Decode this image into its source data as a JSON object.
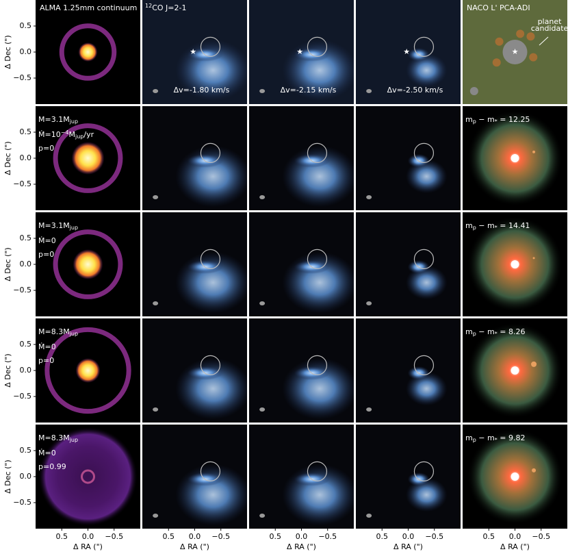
{
  "header": {
    "continuum": "ALMA 1.25mm continuum",
    "co_sup": "12",
    "co": "CO J=2-1",
    "naco": "NACO L' PCA-ADI"
  },
  "axes": {
    "xlabel": "Δ RA (\")",
    "ylabel": "Δ Dec (\")",
    "xlim": [
      1,
      -1
    ],
    "ylim": [
      -1,
      1
    ],
    "ticks": [
      {
        "value": 0.5,
        "label": "0.5"
      },
      {
        "value": 0,
        "label": "0.0"
      },
      {
        "value": -0.5,
        "label": "−0.5"
      }
    ]
  },
  "velocity_labels": [
    "Δv=-1.80 km/s",
    "Δv=-2.15 km/s",
    "Δv=-2.50 km/s"
  ],
  "planet_label": [
    "planet",
    "candidate"
  ],
  "models": [
    {
      "mass": [
        {
          "t": "M=3.1M"
        },
        {
          "sub": "jup"
        }
      ],
      "mdot": [
        {
          "t": "Ṁ=10"
        },
        {
          "sup": "−4"
        },
        {
          "t": "M"
        },
        {
          "sub": "jup"
        },
        {
          "t": "/yr"
        }
      ],
      "p": "p=0",
      "contrast": [
        {
          "t": "m"
        },
        {
          "sub": "p"
        },
        {
          "t": " − m"
        },
        {
          "sub": "*"
        },
        {
          "t": " = 12.25"
        }
      ]
    },
    {
      "mass": [
        {
          "t": "M=3.1M"
        },
        {
          "sub": "jup"
        }
      ],
      "mdot": [
        {
          "t": "Ṁ=0"
        }
      ],
      "p": "p=0",
      "contrast": [
        {
          "t": "m"
        },
        {
          "sub": "p"
        },
        {
          "t": " − m"
        },
        {
          "sub": "*"
        },
        {
          "t": " = 14.41"
        }
      ]
    },
    {
      "mass": [
        {
          "t": "M=8.3M"
        },
        {
          "sub": "jup"
        }
      ],
      "mdot": [
        {
          "t": "Ṁ=0"
        }
      ],
      "p": "p=0",
      "contrast": [
        {
          "t": "m"
        },
        {
          "sub": "p"
        },
        {
          "t": " − m"
        },
        {
          "sub": "*"
        },
        {
          "t": " = 8.26"
        }
      ]
    },
    {
      "mass": [
        {
          "t": "M=8.3M"
        },
        {
          "sub": "jup"
        }
      ],
      "mdot": [
        {
          "t": "Ṁ=0"
        }
      ],
      "p": "p=0.99",
      "contrast": [
        {
          "t": "m"
        },
        {
          "sub": "p"
        },
        {
          "t": " − m"
        },
        {
          "sub": "*"
        },
        {
          "t": " = 9.82"
        }
      ]
    }
  ]
}
